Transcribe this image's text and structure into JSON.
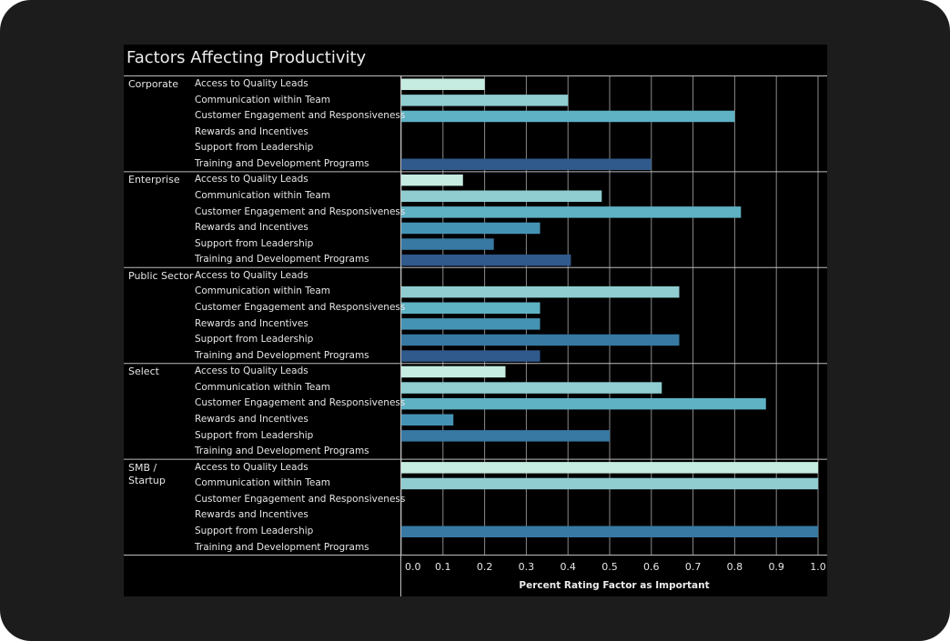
{
  "chart_data": {
    "type": "bar",
    "orientation": "horizontal",
    "title": "Factors Affecting Productivity",
    "xlabel": "Percent Rating Factor as Important",
    "xlim": [
      0,
      1
    ],
    "xticks": [
      "0.0",
      "0.1",
      "0.2",
      "0.3",
      "0.4",
      "0.5",
      "0.6",
      "0.7",
      "0.8",
      "0.9",
      "1.0"
    ],
    "factors": [
      "Access to Quality Leads",
      "Communication within Team",
      "Customer Engagement and Responsiveness",
      "Rewards and Incentives",
      "Support from Leadership",
      "Training and Development Programs"
    ],
    "colors": [
      "#c6ebe0",
      "#8fcdd1",
      "#5fb1c4",
      "#4593b4",
      "#3779a3",
      "#30598c"
    ],
    "groups": [
      {
        "name": "Corporate",
        "values": [
          0.2,
          0.4,
          0.8,
          0,
          0,
          0.6
        ]
      },
      {
        "name": "Enterprise",
        "values": [
          0.148,
          0.481,
          0.815,
          0.333,
          0.222,
          0.407
        ]
      },
      {
        "name": "Public Sector",
        "values": [
          0,
          0.667,
          0.333,
          0.333,
          0.667,
          0.333
        ]
      },
      {
        "name": "Select",
        "values": [
          0.25,
          0.625,
          0.875,
          0.125,
          0.5,
          0
        ]
      },
      {
        "name": "SMB / Startup",
        "values": [
          1.0,
          1.0,
          0,
          0,
          1.0,
          0
        ]
      }
    ]
  }
}
